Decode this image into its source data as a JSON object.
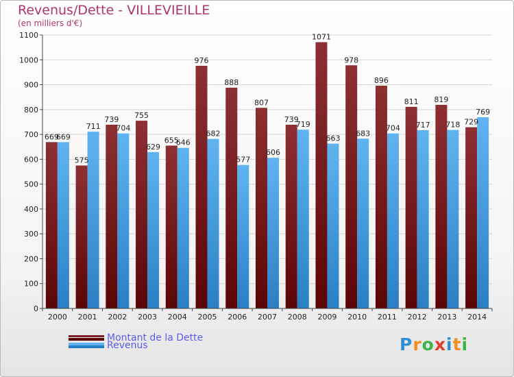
{
  "header": {
    "title": "Revenus/Dette - VILLEVIEILLE",
    "subtitle": "(en milliers d'€)"
  },
  "legend": {
    "items": [
      {
        "label": "Montant de la Dette",
        "color": "#7a1e22"
      },
      {
        "label": "Revenus",
        "color": "#4aa3e6"
      }
    ]
  },
  "logo": {
    "letters": [
      "P",
      "r",
      "o",
      "x",
      "i",
      "t",
      "i"
    ],
    "colors": [
      "#2e8fd6",
      "#f28c1e",
      "#3cb44b",
      "#e63b2e",
      "#2e8fd6",
      "#f28c1e",
      "#3cb44b"
    ]
  },
  "chart_data": {
    "type": "bar",
    "title": "Revenus/Dette - VILLEVIEILLE",
    "subtitle": "(en milliers d'€)",
    "categories": [
      "2000",
      "2001",
      "2002",
      "2003",
      "2004",
      "2005",
      "2006",
      "2007",
      "2008",
      "2009",
      "2010",
      "2011",
      "2012",
      "2013",
      "2014"
    ],
    "series": [
      {
        "name": "Montant de la Dette",
        "color": "#7a1e22",
        "values": [
          669,
          575,
          739,
          755,
          655,
          976,
          888,
          807,
          739,
          1071,
          978,
          896,
          811,
          819,
          729
        ]
      },
      {
        "name": "Revenus",
        "color": "#4aa3e6",
        "values": [
          669,
          711,
          704,
          629,
          646,
          682,
          577,
          606,
          719,
          663,
          683,
          704,
          717,
          718,
          769
        ]
      }
    ],
    "ylim": [
      0,
      1100
    ],
    "yticks": [
      0,
      100,
      200,
      300,
      400,
      500,
      600,
      700,
      800,
      900,
      1000,
      1100
    ],
    "grid": true,
    "legend_position": "bottom-left"
  }
}
